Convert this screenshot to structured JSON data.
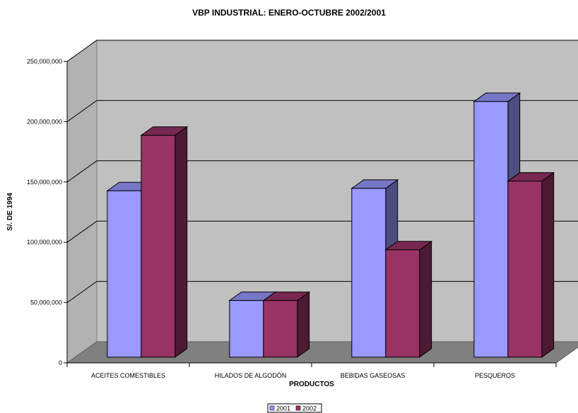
{
  "chart_data": {
    "type": "bar",
    "title": "VBP INDUSTRIAL: ENERO-OCTUBRE 2002/2001",
    "xlabel": "PRODUCTOS",
    "ylabel": "S/. DE 1994",
    "categories": [
      "ACEITES COMESTIBLES",
      "HILADOS DE ALGODÓN",
      "BEBIDAS GASEOSAS",
      "PESQUEROS"
    ],
    "series": [
      {
        "name": "2001",
        "values": [
          138000000,
          47000000,
          140000000,
          212000000
        ],
        "color": "#9999ff"
      },
      {
        "name": "2002",
        "values": [
          184000000,
          47000000,
          89000000,
          146000000
        ],
        "color": "#993366"
      }
    ],
    "ylim": [
      0,
      250000000
    ],
    "yticks": [
      "0",
      "50,000,000",
      "100,000,000",
      "150,000,000",
      "200,000,000",
      "250,000,000"
    ],
    "grid": true,
    "legend_position": "bottom-center",
    "style": "3d-clustered-column"
  }
}
